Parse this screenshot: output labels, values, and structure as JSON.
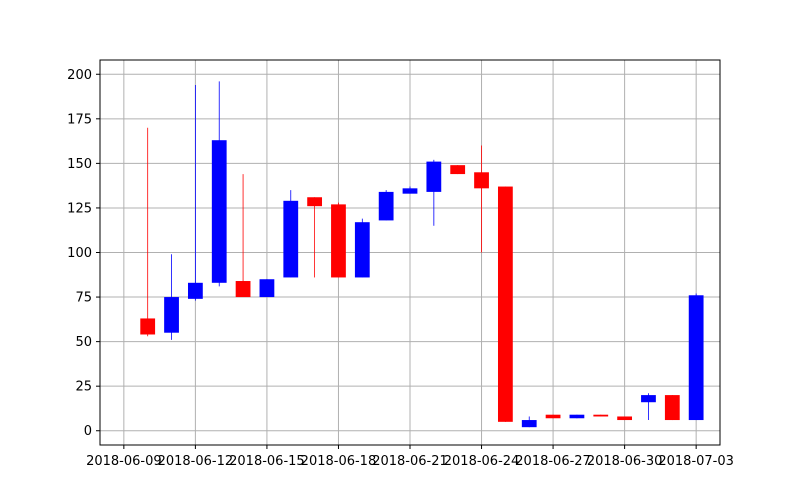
{
  "chart_data": {
    "type": "candlestick",
    "title": "",
    "xlabel": "",
    "ylabel": "",
    "ylim": [
      -8,
      208
    ],
    "xlim": [
      "2018-06-08",
      "2018-07-04"
    ],
    "grid": true,
    "colors": {
      "up": "#0000ff",
      "down": "#ff0000",
      "grid": "#b0b0b0",
      "axis": "#000000"
    },
    "yticks": [
      0,
      25,
      50,
      75,
      100,
      125,
      150,
      175,
      200
    ],
    "xticks": [
      "2018-06-09",
      "2018-06-12",
      "2018-06-15",
      "2018-06-18",
      "2018-06-21",
      "2018-06-24",
      "2018-06-27",
      "2018-06-30",
      "2018-07-03"
    ],
    "candles": [
      {
        "date": "2018-06-10",
        "open": 63,
        "high": 170,
        "low": 53,
        "close": 54
      },
      {
        "date": "2018-06-11",
        "open": 55,
        "high": 99,
        "low": 51,
        "close": 75
      },
      {
        "date": "2018-06-12",
        "open": 74,
        "high": 194,
        "low": 73,
        "close": 83
      },
      {
        "date": "2018-06-13",
        "open": 83,
        "high": 196,
        "low": 81,
        "close": 163
      },
      {
        "date": "2018-06-14",
        "open": 84,
        "high": 144,
        "low": 75,
        "close": 75
      },
      {
        "date": "2018-06-15",
        "open": 75,
        "high": 85,
        "low": 75,
        "close": 85
      },
      {
        "date": "2018-06-16",
        "open": 86,
        "high": 135,
        "low": 86,
        "close": 129
      },
      {
        "date": "2018-06-17",
        "open": 131,
        "high": 131,
        "low": 86,
        "close": 126
      },
      {
        "date": "2018-06-18",
        "open": 127,
        "high": 128,
        "low": 86,
        "close": 86
      },
      {
        "date": "2018-06-19",
        "open": 86,
        "high": 119,
        "low": 86,
        "close": 117
      },
      {
        "date": "2018-06-20",
        "open": 118,
        "high": 135,
        "low": 118,
        "close": 134
      },
      {
        "date": "2018-06-21",
        "open": 133,
        "high": 137,
        "low": 133,
        "close": 136
      },
      {
        "date": "2018-06-22",
        "open": 134,
        "high": 152,
        "low": 115,
        "close": 151
      },
      {
        "date": "2018-06-23",
        "open": 149,
        "high": 149,
        "low": 144,
        "close": 144
      },
      {
        "date": "2018-06-24",
        "open": 145,
        "high": 160,
        "low": 100,
        "close": 136
      },
      {
        "date": "2018-06-25",
        "open": 137,
        "high": 137,
        "low": 5,
        "close": 5
      },
      {
        "date": "2018-06-26",
        "open": 2,
        "high": 8,
        "low": 2,
        "close": 6
      },
      {
        "date": "2018-06-27",
        "open": 9,
        "high": 9,
        "low": 7,
        "close": 7
      },
      {
        "date": "2018-06-28",
        "open": 7,
        "high": 9,
        "low": 7,
        "close": 9
      },
      {
        "date": "2018-06-29",
        "open": 9,
        "high": 9,
        "low": 8,
        "close": 8
      },
      {
        "date": "2018-06-30",
        "open": 8,
        "high": 8,
        "low": 6,
        "close": 6
      },
      {
        "date": "2018-07-01",
        "open": 16,
        "high": 21,
        "low": 6,
        "close": 20
      },
      {
        "date": "2018-07-02",
        "open": 20,
        "high": 20,
        "low": 6,
        "close": 6
      },
      {
        "date": "2018-07-03",
        "open": 6,
        "high": 77,
        "low": 6,
        "close": 76
      }
    ]
  }
}
